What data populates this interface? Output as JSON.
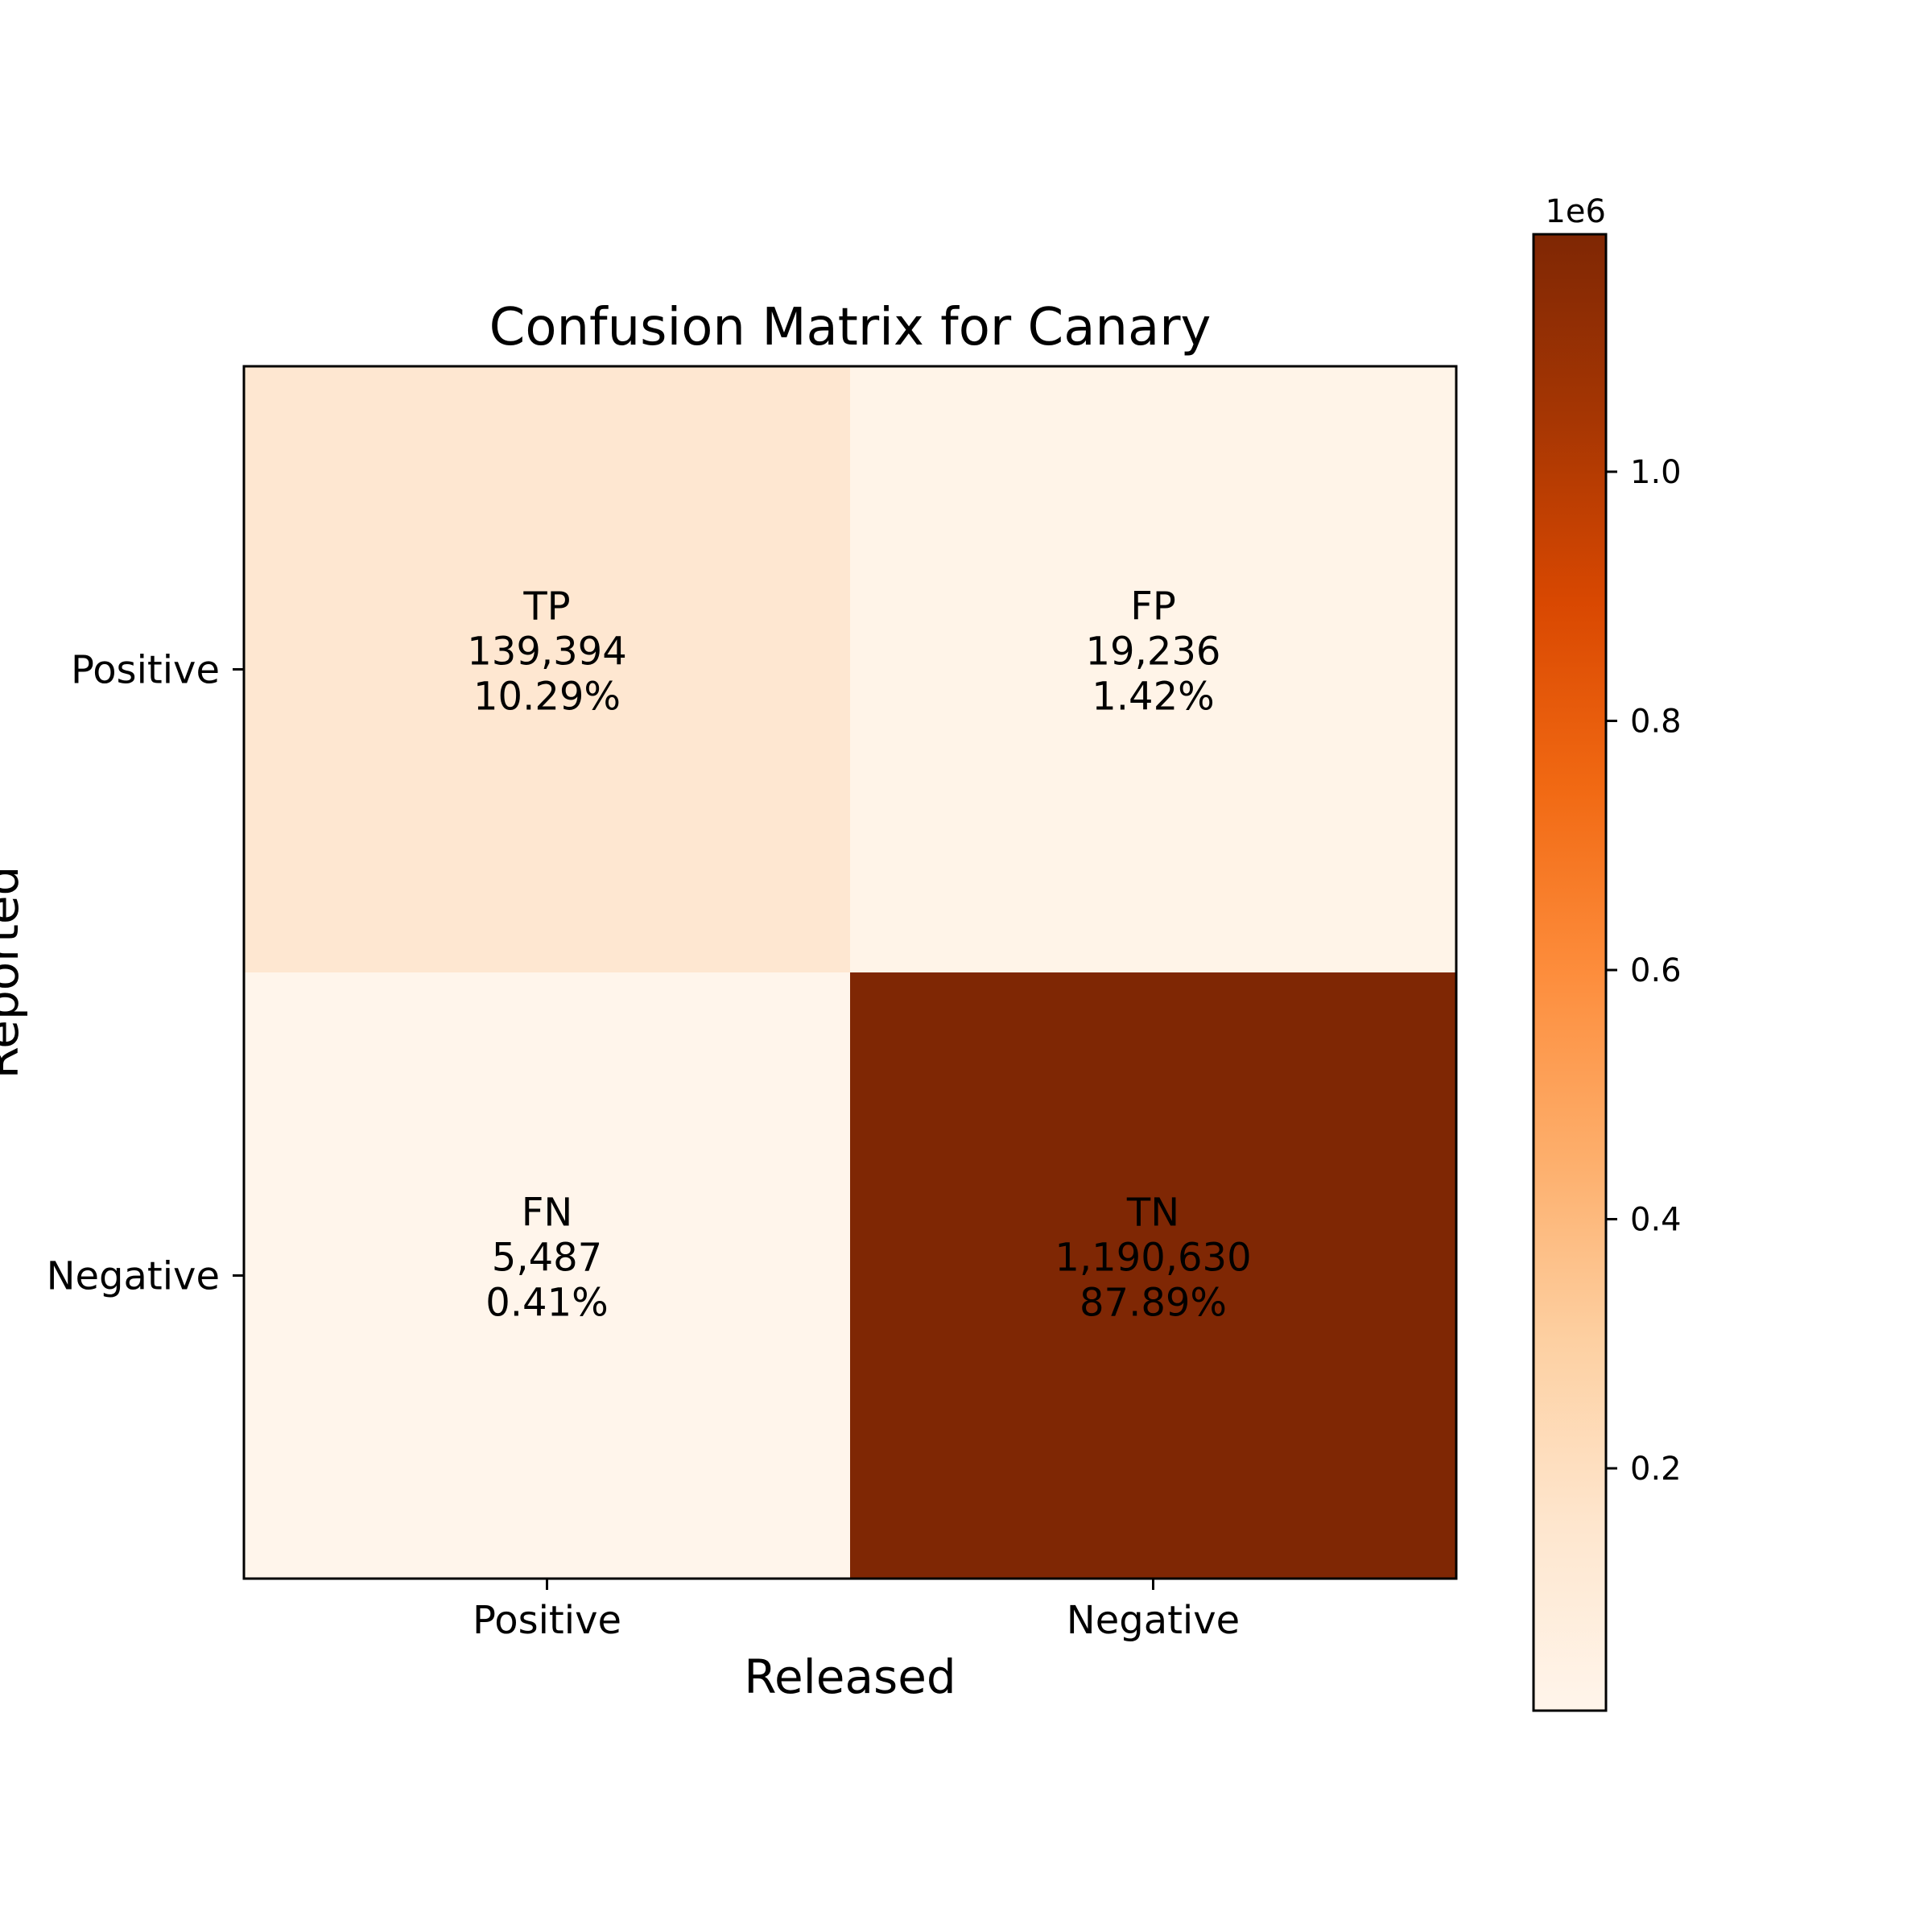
{
  "chart_data": {
    "type": "heatmap",
    "title": "Confusion Matrix for Canary",
    "xlabel": "Released",
    "ylabel": "Reported",
    "x_categories": [
      "Positive",
      "Negative"
    ],
    "y_categories": [
      "Positive",
      "Negative"
    ],
    "cells": [
      {
        "row": 0,
        "col": 0,
        "label": "TP",
        "value": 139394,
        "value_text": "139,394",
        "percent_text": "10.29%"
      },
      {
        "row": 0,
        "col": 1,
        "label": "FP",
        "value": 19236,
        "value_text": "19,236",
        "percent_text": "1.42%"
      },
      {
        "row": 1,
        "col": 0,
        "label": "FN",
        "value": 5487,
        "value_text": "5,487",
        "percent_text": "0.41%"
      },
      {
        "row": 1,
        "col": 1,
        "label": "TN",
        "value": 1190630,
        "value_text": "1,190,630",
        "percent_text": "87.89%"
      }
    ],
    "colormap": "Oranges",
    "colorbar": {
      "min": 5487,
      "max": 1190630,
      "ticks": [
        0.2,
        0.4,
        0.6,
        0.8,
        1.0
      ],
      "tick_labels": [
        "0.2",
        "0.4",
        "0.6",
        "0.8",
        "1.0"
      ],
      "offset_label": "1e6",
      "scale": 1000000
    },
    "grid": false
  }
}
